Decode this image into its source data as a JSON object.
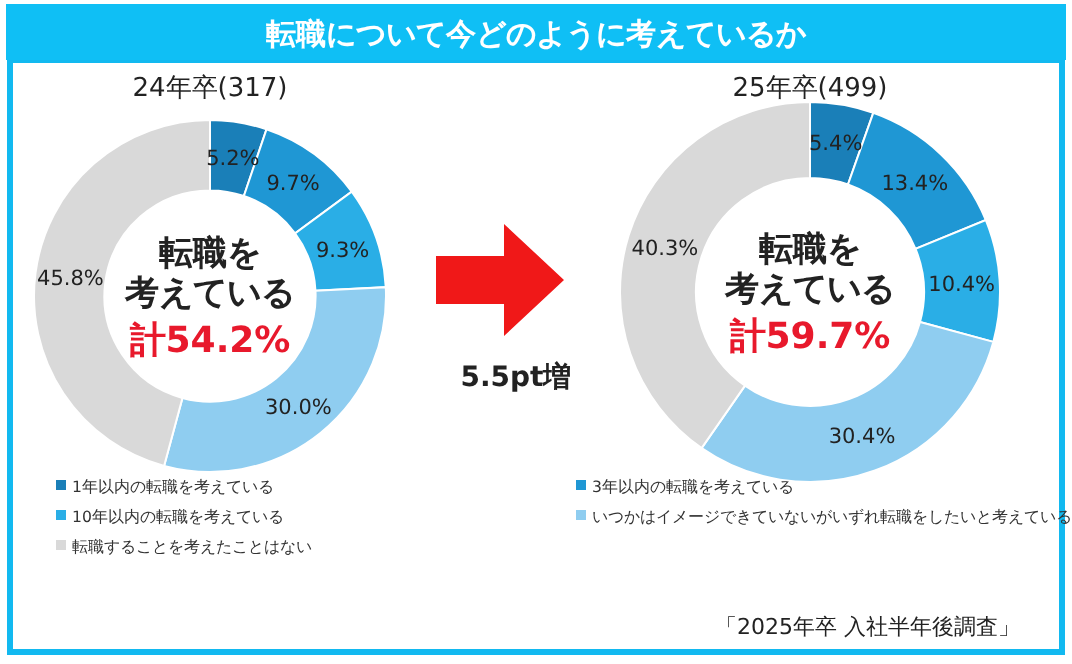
{
  "chart_data": [
    {
      "type": "donut",
      "title": "転職について今どのように考えているか",
      "subtitle": "24年卒(317)",
      "categories": [
        "1年以内の転職を考えている",
        "3年以内の転職を考えている",
        "10年以内の転職を考えている",
        "いつかはイメージできていないがいずれ転職をしたいと考えている",
        "転職することを考えたことはない"
      ],
      "values": [
        5.2,
        9.7,
        9.3,
        30.0,
        45.8
      ],
      "value_labels": [
        "5.2%",
        "9.7%",
        "9.3%",
        "30.0%",
        "45.8%"
      ],
      "colors": [
        "#1a7fb8",
        "#1f97d4",
        "#2aaee6",
        "#8fcdf0",
        "#d9d9d9"
      ],
      "legend": "bottom",
      "annotations": [
        "転職を",
        "考えている",
        "計54.2%",
        "5.5pt増"
      ]
    },
    {
      "type": "donut",
      "subtitle": "25年卒(499)",
      "categories": [
        null,
        null,
        null,
        null,
        null
      ],
      "values": [
        5.4,
        13.4,
        10.4,
        30.4,
        40.3
      ],
      "value_labels": [
        "5.4%",
        "13.4%",
        "10.4%",
        "30.4%",
        "40.3%"
      ],
      "colors": [
        "#1a7fb8",
        "#1f97d4",
        "#2aaee6",
        "#8fcdf0",
        "#d9d9d9"
      ],
      "annotations": [
        "転職を",
        "考えている",
        "計59.7%",
        "「2025年卒 入社半年後調査」"
      ]
    }
  ]
}
